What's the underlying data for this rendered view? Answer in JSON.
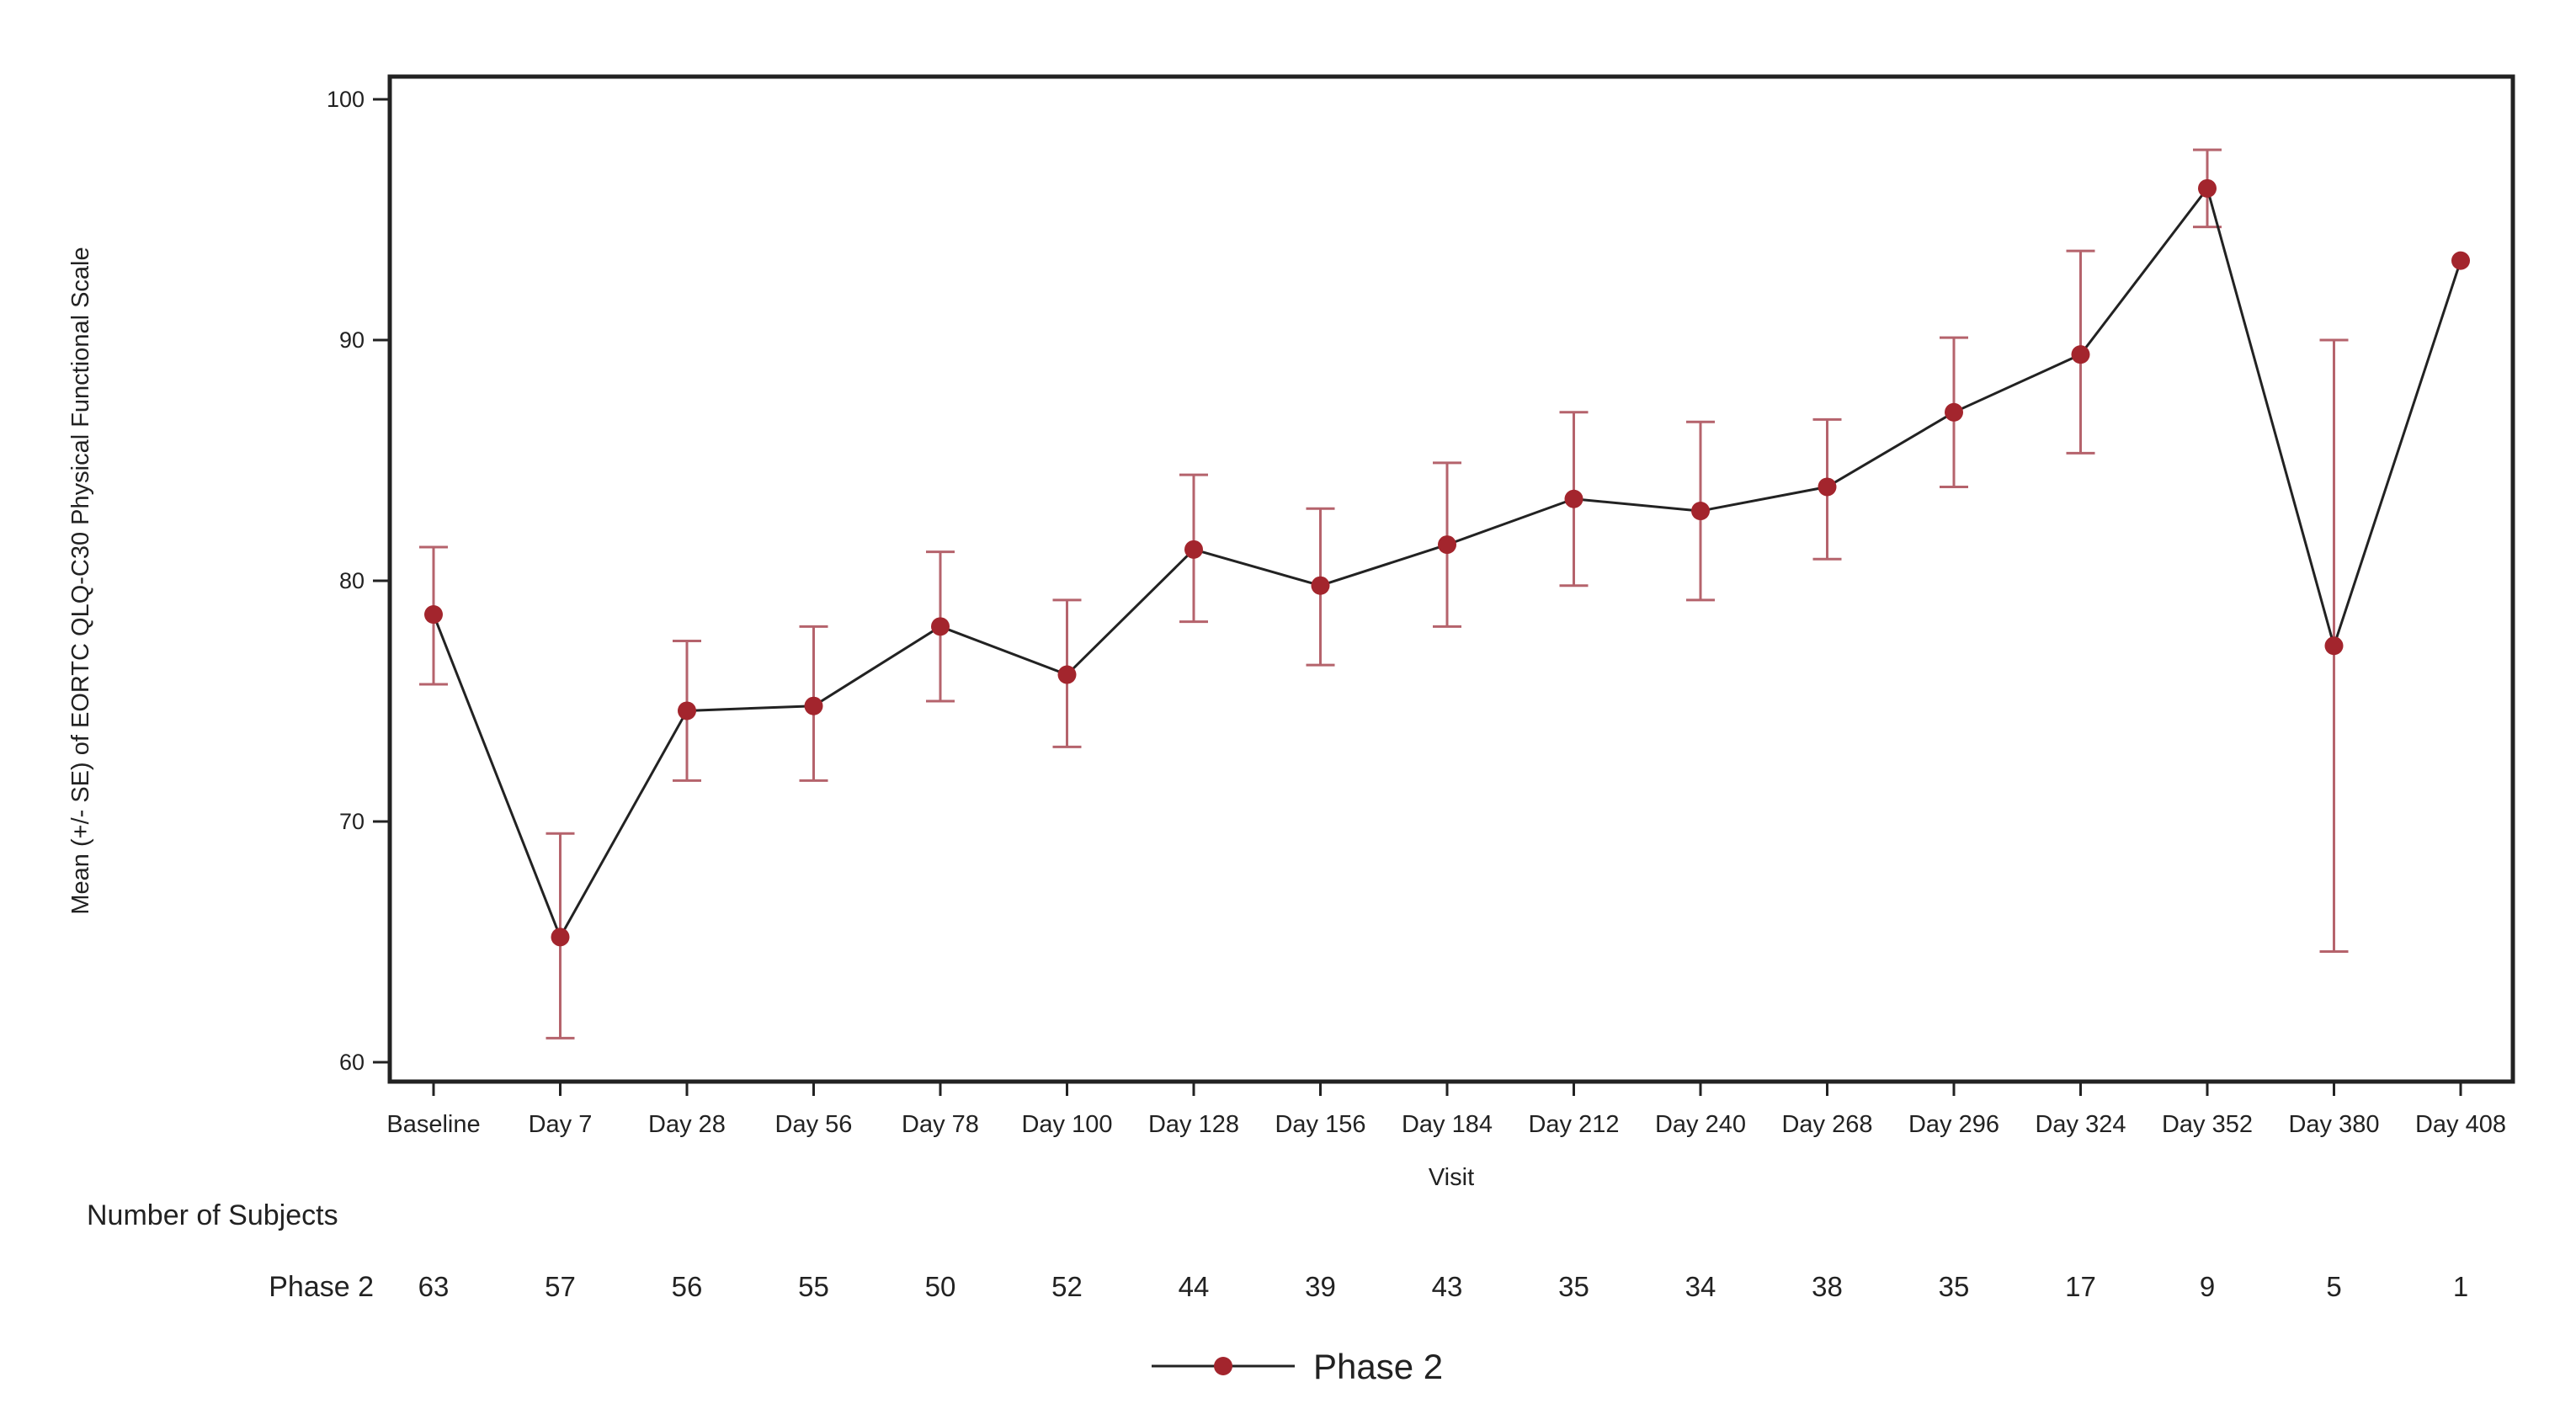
{
  "chart_data": {
    "type": "line",
    "title": "",
    "xlabel": "Visit",
    "ylabel": "Mean (+/- SE) of EORTC QLQ-C30 Physical Functional Scale",
    "ylim": [
      60,
      100
    ],
    "yticks": [
      60,
      70,
      80,
      90,
      100
    ],
    "grid": false,
    "legend_position": "bottom",
    "categories": [
      "Baseline",
      "Day 7",
      "Day 28",
      "Day 56",
      "Day 78",
      "Day 100",
      "Day 128",
      "Day 156",
      "Day 184",
      "Day 212",
      "Day 240",
      "Day 268",
      "Day 296",
      "Day 324",
      "Day 352",
      "Day 380",
      "Day 408"
    ],
    "series": [
      {
        "name": "Phase 2",
        "color": "#a3252d",
        "line_color": "#222222",
        "errorbar_color": "#b5636c",
        "values": [
          78.6,
          65.2,
          74.6,
          74.8,
          78.1,
          76.1,
          81.3,
          79.8,
          81.5,
          83.4,
          82.9,
          83.9,
          87.0,
          89.4,
          96.3,
          77.3,
          93.3
        ],
        "se_upper": [
          81.4,
          69.5,
          77.5,
          78.1,
          81.2,
          79.2,
          84.4,
          83.0,
          84.9,
          87.0,
          86.6,
          86.7,
          90.1,
          93.7,
          97.9,
          90.0,
          null
        ],
        "se_lower": [
          75.7,
          61.0,
          71.7,
          71.7,
          75.0,
          73.1,
          78.3,
          76.5,
          78.1,
          79.8,
          79.2,
          80.9,
          83.9,
          85.3,
          94.7,
          64.6,
          null
        ]
      }
    ],
    "subjects_table": {
      "title": "Number of Subjects",
      "rows": [
        {
          "label": "Phase 2",
          "values": [
            63,
            57,
            56,
            55,
            50,
            52,
            44,
            39,
            43,
            35,
            34,
            38,
            35,
            17,
            9,
            5,
            1
          ]
        }
      ]
    }
  },
  "labels": {
    "xlabel": "Visit",
    "ylabel": "Mean (+/- SE) of EORTC QLQ-C30 Physical Functional Scale",
    "table_title": "Number of Subjects",
    "table_row_label": "Phase 2",
    "legend_label": "Phase 2"
  }
}
